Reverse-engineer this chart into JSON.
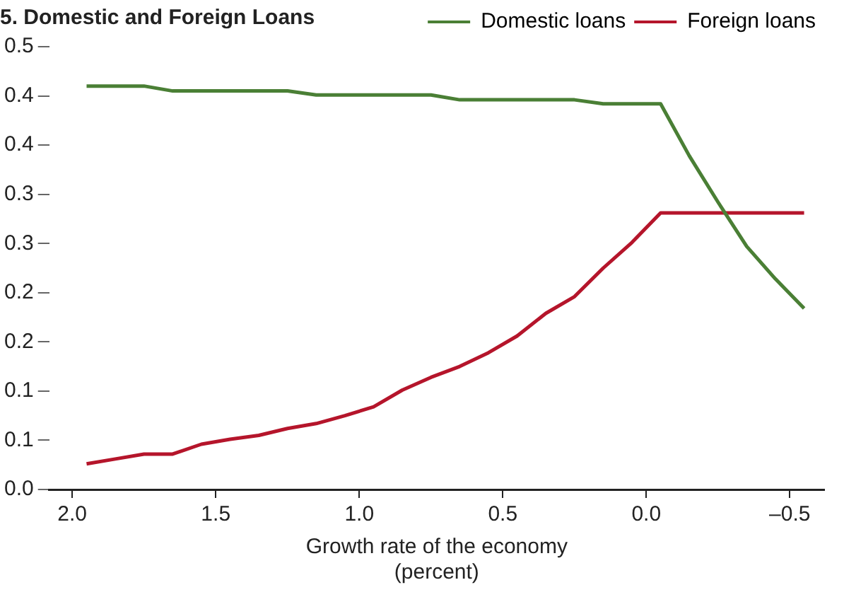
{
  "chart_data": {
    "type": "line",
    "title": "5. Domestic and Foreign Loans",
    "xlabel": "Growth rate of the economy\n(percent)",
    "x": [
      1.95,
      1.85,
      1.75,
      1.65,
      1.55,
      1.45,
      1.35,
      1.25,
      1.15,
      1.05,
      0.95,
      0.85,
      0.75,
      0.65,
      0.55,
      0.45,
      0.35,
      0.25,
      0.15,
      0.05,
      -0.05,
      -0.15,
      -0.25,
      -0.35,
      -0.45,
      -0.55
    ],
    "series": [
      {
        "name": "Domestic loans",
        "color": "#4a7f35",
        "values": [
          0.41,
          0.41,
          0.41,
          0.405,
          0.405,
          0.405,
          0.405,
          0.405,
          0.401,
          0.401,
          0.401,
          0.401,
          0.401,
          0.396,
          0.396,
          0.396,
          0.396,
          0.396,
          0.392,
          0.392,
          0.392,
          0.339,
          0.292,
          0.247,
          0.214,
          0.184
        ]
      },
      {
        "name": "Foreign loans",
        "color": "#b5152b",
        "values": [
          0.026,
          0.031,
          0.036,
          0.036,
          0.046,
          0.051,
          0.055,
          0.062,
          0.067,
          0.075,
          0.084,
          0.101,
          0.114,
          0.125,
          0.139,
          0.156,
          0.179,
          0.196,
          0.225,
          0.251,
          0.281,
          0.281,
          0.281,
          0.281,
          0.281,
          0.281
        ]
      }
    ],
    "xlim": [
      2.08,
      -0.62
    ],
    "ylim": [
      0,
      0.45
    ],
    "xticks": [
      {
        "value": 2,
        "label": "2.0"
      },
      {
        "value": 1.5,
        "label": "1.5"
      },
      {
        "value": 1,
        "label": "1.0"
      },
      {
        "value": 0.5,
        "label": "0.5"
      },
      {
        "value": 0,
        "label": "0.0"
      },
      {
        "value": -0.5,
        "label": "–0.5"
      }
    ],
    "yticks": [
      {
        "value": 0,
        "label": "0.0"
      },
      {
        "value": 0.05,
        "label": "0.1"
      },
      {
        "value": 0.1,
        "label": "0.1"
      },
      {
        "value": 0.15,
        "label": "0.2"
      },
      {
        "value": 0.2,
        "label": "0.2"
      },
      {
        "value": 0.25,
        "label": "0.3"
      },
      {
        "value": 0.3,
        "label": "0.3"
      },
      {
        "value": 0.35,
        "label": "0.4"
      },
      {
        "value": 0.4,
        "label": "0.4"
      },
      {
        "value": 0.45,
        "label": "0.5"
      }
    ],
    "grid": false,
    "legend": "top right",
    "marker": "none",
    "line_style": "solid"
  }
}
